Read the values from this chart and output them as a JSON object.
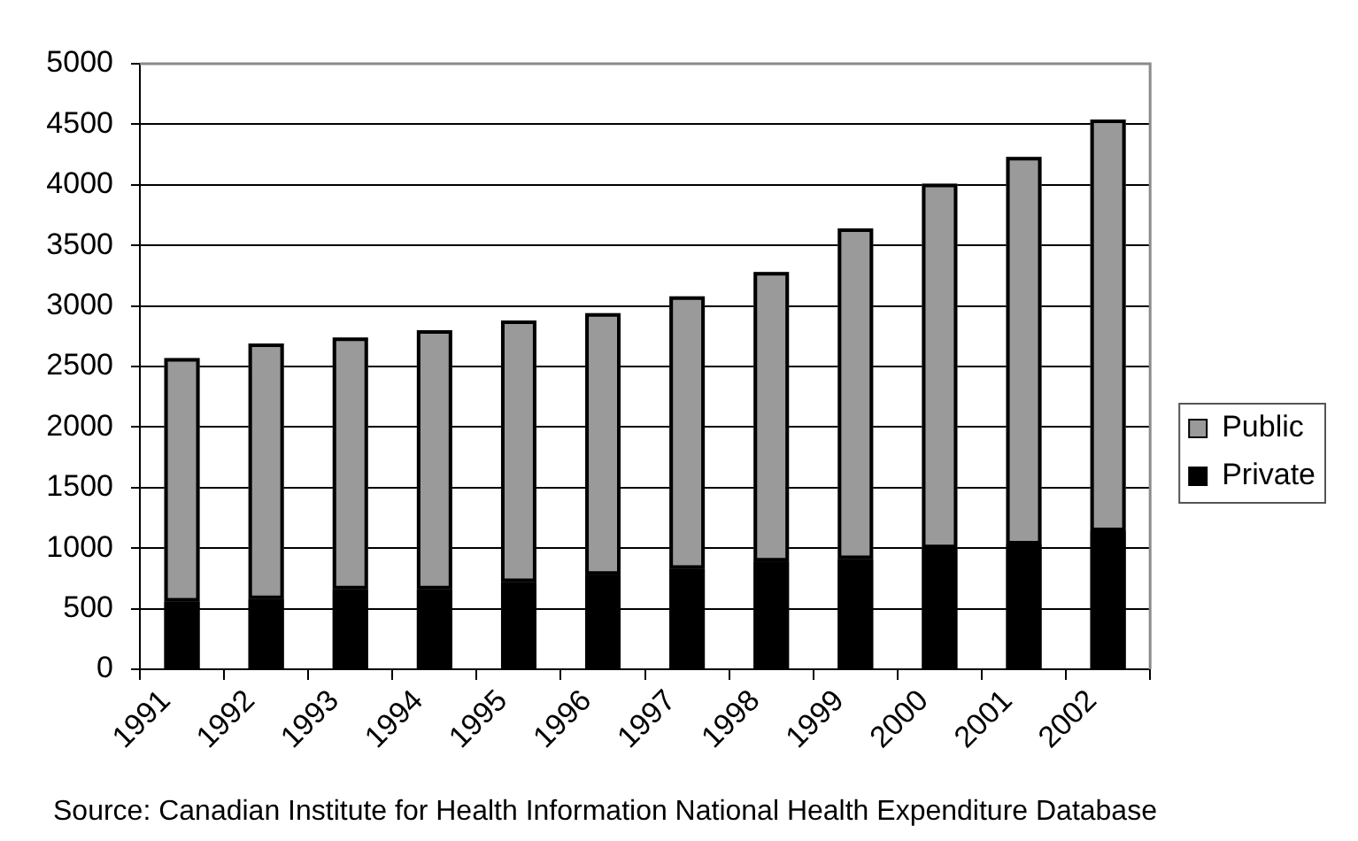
{
  "chart_data": {
    "type": "bar",
    "stacked": true,
    "categories": [
      "1991",
      "1992",
      "1993",
      "1994",
      "1995",
      "1996",
      "1997",
      "1998",
      "1999",
      "2000",
      "2001",
      "2002"
    ],
    "series": [
      {
        "name": "Private",
        "color": "#000000",
        "values": [
          560,
          580,
          660,
          660,
          720,
          780,
          830,
          890,
          910,
          1000,
          1030,
          1140
        ]
      },
      {
        "name": "Public",
        "color": "#9a9a9a",
        "values": [
          2010,
          2110,
          2080,
          2140,
          2160,
          2160,
          2250,
          2390,
          2730,
          3010,
          3200,
          3400
        ]
      }
    ],
    "ylim": [
      0,
      5000
    ],
    "yticks": [
      0,
      500,
      1000,
      1500,
      2000,
      2500,
      3000,
      3500,
      4000,
      4500,
      5000
    ],
    "grid": "y",
    "legend": "right",
    "annotations": [
      "Source: Canadian Institute for Health Information National Health Expenditure Database"
    ]
  }
}
